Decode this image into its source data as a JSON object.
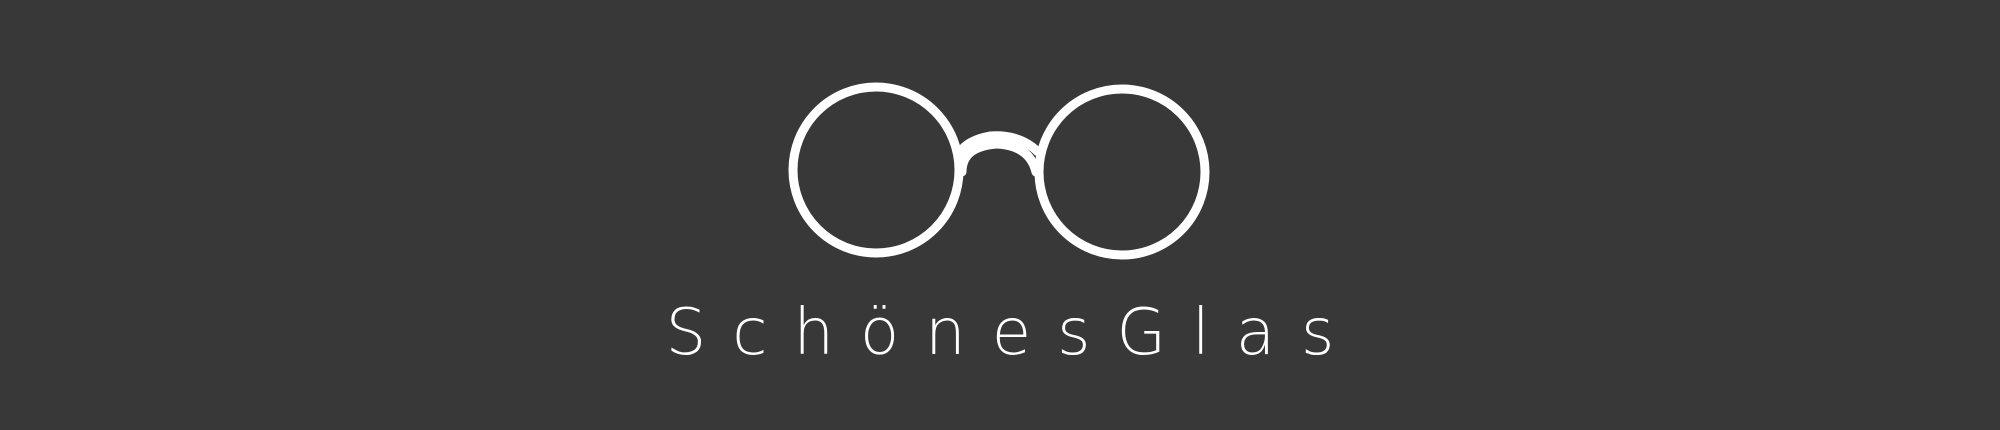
{
  "brand": {
    "name": "SchönesGlas",
    "logo_icon": "round-glasses-icon",
    "colors": {
      "background": "#383838",
      "foreground": "#ffffff"
    }
  }
}
